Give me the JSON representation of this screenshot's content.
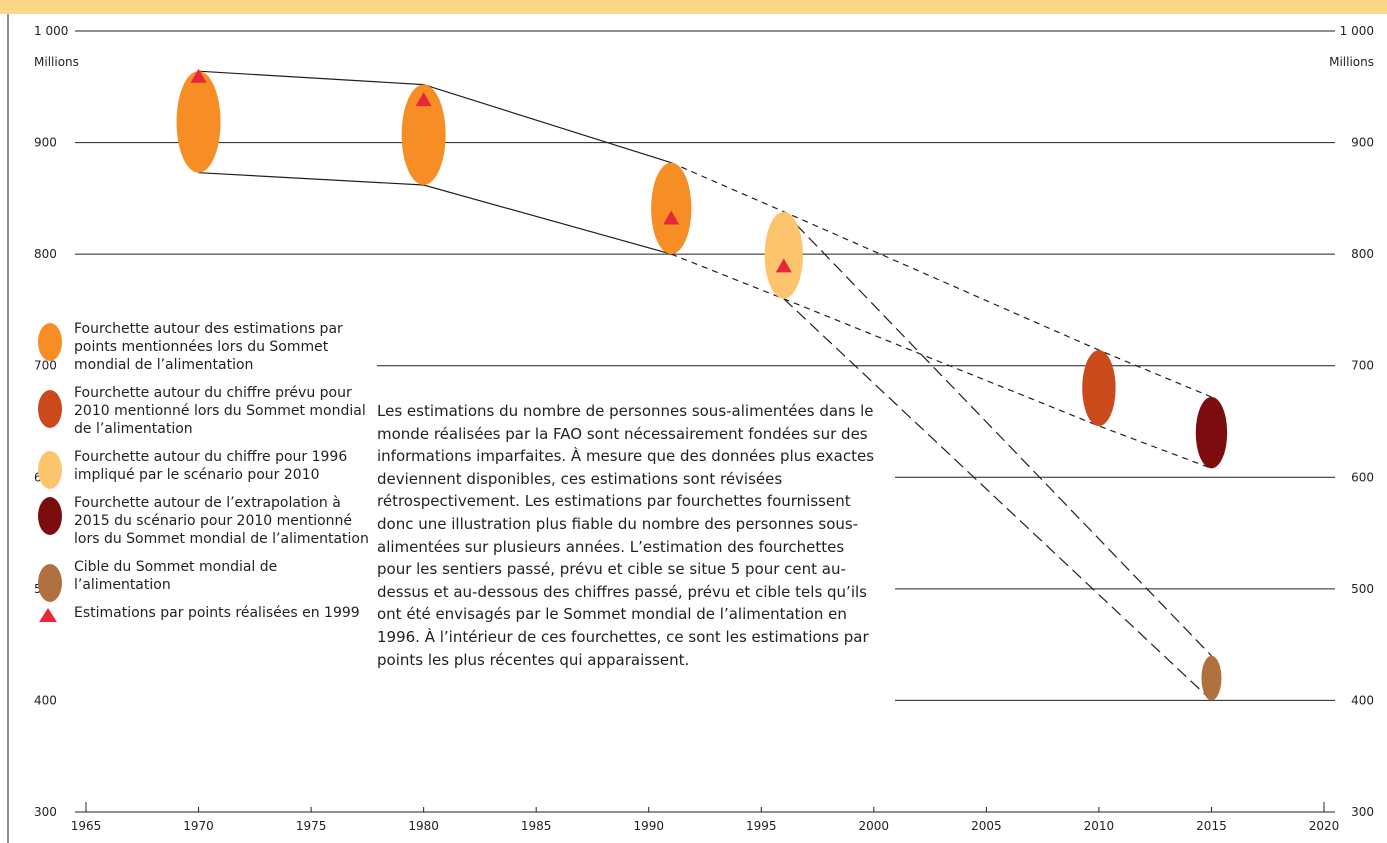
{
  "chart_data": {
    "type": "scatter",
    "xlim": [
      1965,
      2020
    ],
    "ylim": [
      300,
      1000
    ],
    "x_ticks": [
      "1965",
      "1970",
      "1975",
      "1980",
      "1985",
      "1990",
      "1995",
      "2000",
      "2005",
      "2010",
      "2015",
      "2020"
    ],
    "y_ticks": [
      "300",
      "400",
      "500",
      "600",
      "700",
      "800",
      "900",
      "1 000"
    ],
    "ylabel": "Millions",
    "gridlines_y": [
      400,
      500,
      600,
      700,
      800,
      900,
      1000
    ],
    "ranges": [
      {
        "x": 1970,
        "low": 873,
        "high": 964,
        "category": "wfs_estimates"
      },
      {
        "x": 1980,
        "low": 862,
        "high": 952,
        "category": "wfs_estimates"
      },
      {
        "x": 1991,
        "low": 800,
        "high": 882,
        "category": "wfs_estimates"
      },
      {
        "x": 1996,
        "low": 760,
        "high": 838,
        "category": "scenario_1996"
      },
      {
        "x": 2010,
        "low": 646,
        "high": 714,
        "category": "forecast_2010"
      },
      {
        "x": 2015,
        "low": 608,
        "high": 672,
        "category": "extrapolation_2015"
      },
      {
        "x": 2015,
        "low": 400,
        "high": 440,
        "category": "wfs_target"
      }
    ],
    "point_estimates_1999": [
      {
        "x": 1970,
        "y": 959
      },
      {
        "x": 1980,
        "y": 938
      },
      {
        "x": 1991,
        "y": 832
      },
      {
        "x": 1996,
        "y": 789
      }
    ],
    "solid_envelope": {
      "upper": [
        [
          1970,
          964
        ],
        [
          1980,
          952
        ],
        [
          1991,
          882
        ]
      ],
      "lower": [
        [
          1970,
          873
        ],
        [
          1980,
          862
        ],
        [
          1991,
          800
        ]
      ]
    },
    "dashed_forecast_envelope": {
      "upper": [
        [
          1991,
          882
        ],
        [
          1996,
          838
        ],
        [
          2010,
          714
        ],
        [
          2015,
          672
        ]
      ],
      "lower": [
        [
          1991,
          800
        ],
        [
          1996,
          760
        ],
        [
          2010,
          646
        ],
        [
          2015,
          608
        ]
      ]
    },
    "dashed_target_envelope": {
      "upper": [
        [
          1996,
          838
        ],
        [
          2015,
          440
        ]
      ],
      "lower": [
        [
          1996,
          760
        ],
        [
          2015,
          400
        ]
      ]
    }
  },
  "colors": {
    "wfs_estimates": "#f68d25",
    "forecast_2010": "#cb4a1c",
    "scenario_1996": "#fdc46e",
    "extrapolation_2015": "#7d0c0e",
    "wfs_target": "#b07040",
    "point_marker": "#e8273a",
    "top_band": "#fdd688"
  },
  "legend": [
    {
      "category": "wfs_estimates",
      "label": "Fourchette autour des estimations par points mentionnées lors du Sommet mondial de l’alimentation"
    },
    {
      "category": "forecast_2010",
      "label": "Fourchette autour du chiffre prévu pour 2010 mentionné lors du Sommet mondial de l’alimentation"
    },
    {
      "category": "scenario_1996",
      "label": "Fourchette autour du chiffre pour 1996 impliqué par le scénario pour 2010"
    },
    {
      "category": "extrapolation_2015",
      "label": "Fourchette autour de l’extrapolation à 2015 du scénario pour 2010 mentionné lors du Sommet mondial de l’alimentation"
    },
    {
      "category": "wfs_target",
      "label": "Cible du Sommet mondial de l’alimentation"
    },
    {
      "category": "point_marker",
      "label": "Estimations par points réalisées en 1999"
    }
  ],
  "description": "Les estimations du nombre de personnes sous-alimentées dans le monde réalisées par la FAO sont nécessairement fondées sur des informations imparfaites. À mesure que des données plus exactes deviennent disponibles, ces estimations sont révisées rétrospectivement. Les estimations par fourchettes fournissent donc une illustration plus fiable du nombre des personnes sous-alimentées sur plusieurs années. L’estimation des fourchettes pour les sentiers passé, prévu et cible se situe 5 pour cent  au-dessus et au-dessous des chiffres passé, prévu et cible tels qu’ils ont été envisagés par le Sommet mondial de l’alimentation en 1996. À l’intérieur de ces fourchettes, ce sont les estimations par points les plus récentes qui apparaissent."
}
